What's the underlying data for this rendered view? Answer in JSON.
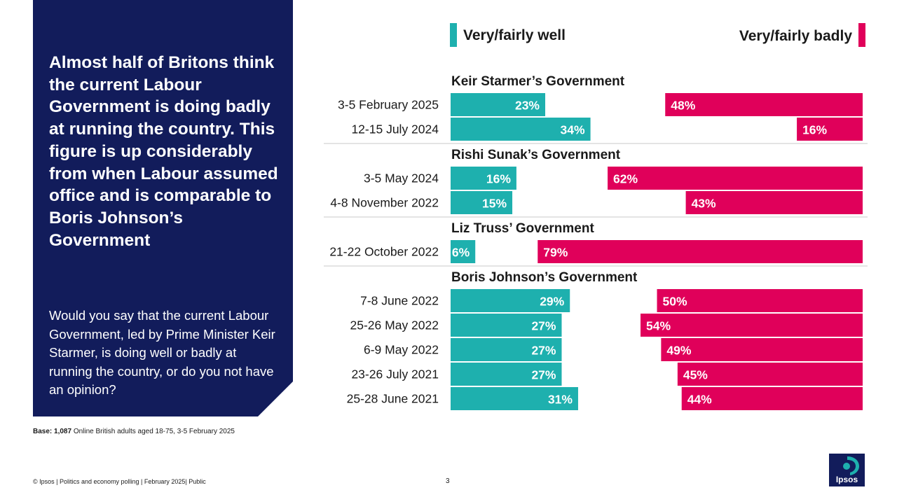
{
  "headline": "Almost half of Britons think the current Labour Government is doing badly at running the country. This figure is up considerably from when Labour assumed office and is comparable to Boris Johnson’s Government",
  "question": "Would you say that the current Labour Government, led by Prime Minister Keir Starmer, is doing well or badly at running the country, or do you not have an opinion?",
  "base_note": {
    "label": "Base: 1,087",
    "text": " Online British adults aged 18-75, 3-5 February 2025"
  },
  "footer": {
    "text": "© Ipsos | Politics and economy polling | February 2025| Public",
    "page_number": "3"
  },
  "logo": {
    "text": "Ipsos"
  },
  "colors": {
    "navy": "#121c5b",
    "teal": "#1eb0ae",
    "crimson": "#e0005a",
    "divider": "#c8c8c8"
  },
  "legend": {
    "well": "Very/fairly well",
    "badly": "Very/fairly badly"
  },
  "chart_data": {
    "type": "bar",
    "orientation": "horizontal",
    "series": [
      {
        "name": "Very/fairly well",
        "color": "#1eb0ae"
      },
      {
        "name": "Very/fairly badly",
        "color": "#e0005a"
      }
    ],
    "value_max": 100,
    "value_format": "percent",
    "groups": [
      {
        "title": "Keir Starmer’s Government",
        "rows": [
          {
            "label": "3-5 February 2025",
            "well": 23,
            "badly": 48
          },
          {
            "label": "12-15 July 2024",
            "well": 34,
            "badly": 16
          }
        ]
      },
      {
        "title": "Rishi Sunak’s Government",
        "rows": [
          {
            "label": "3-5 May 2024",
            "well": 16,
            "badly": 62
          },
          {
            "label": "4-8 November 2022",
            "well": 15,
            "badly": 43
          }
        ]
      },
      {
        "title": "Liz Truss’ Government",
        "rows": [
          {
            "label": "21-22 October 2022",
            "well": 6,
            "badly": 79
          }
        ]
      },
      {
        "title": "Boris Johnson’s Government",
        "rows": [
          {
            "label": "7-8 June 2022",
            "well": 29,
            "badly": 50
          },
          {
            "label": "25-26 May 2022",
            "well": 27,
            "badly": 54
          },
          {
            "label": "6-9 May 2022",
            "well": 27,
            "badly": 49
          },
          {
            "label": "23-26 July 2021",
            "well": 27,
            "badly": 45
          },
          {
            "label": "25-28 June 2021",
            "well": 31,
            "badly": 44
          }
        ]
      }
    ]
  }
}
